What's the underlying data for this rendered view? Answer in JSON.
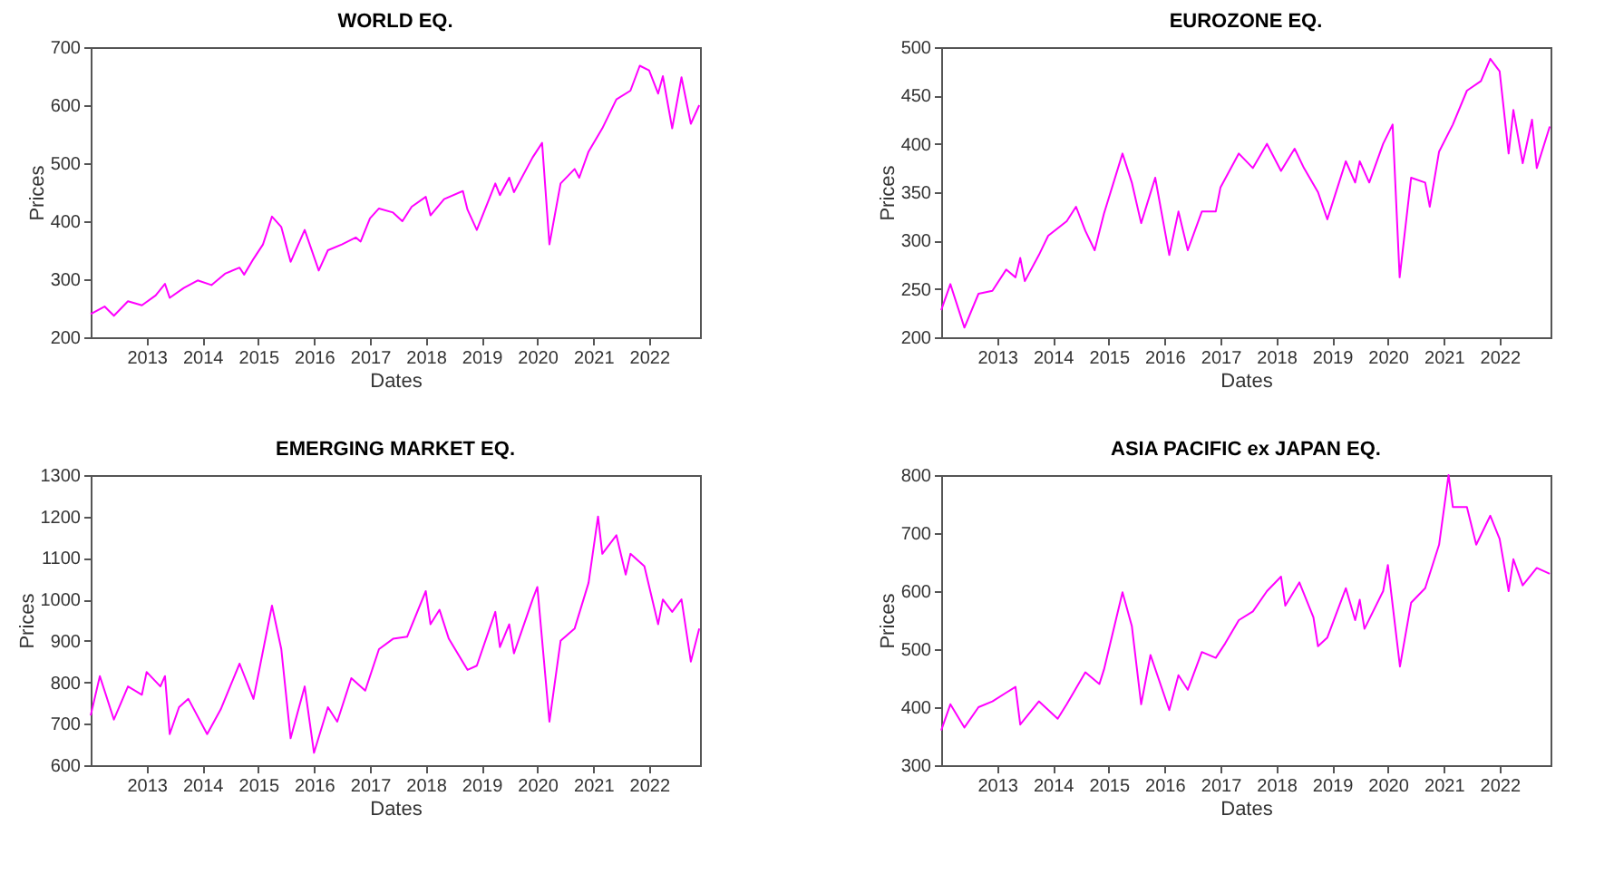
{
  "chart_data": [
    {
      "type": "line",
      "title": "WORLD EQ.",
      "xlabel": "Dates",
      "ylabel": "Prices",
      "grid": false,
      "xlim": [
        "2012-01-01",
        "2022-11-30"
      ],
      "xticks": [
        "2013",
        "2014",
        "2015",
        "2016",
        "2017",
        "2018",
        "2019",
        "2020",
        "2021",
        "2022"
      ],
      "ylim": [
        200,
        700
      ],
      "yticks": [
        200,
        300,
        400,
        500,
        600,
        700
      ],
      "x": [
        "2012-01",
        "2012-04",
        "2012-06",
        "2012-09",
        "2012-12",
        "2013-03",
        "2013-05",
        "2013-06",
        "2013-09",
        "2013-12",
        "2014-03",
        "2014-06",
        "2014-09",
        "2014-10",
        "2014-12",
        "2015-02",
        "2015-04",
        "2015-06",
        "2015-08",
        "2015-11",
        "2016-02",
        "2016-04",
        "2016-07",
        "2016-10",
        "2016-11",
        "2017-01",
        "2017-03",
        "2017-06",
        "2017-08",
        "2017-10",
        "2018-01",
        "2018-02",
        "2018-05",
        "2018-09",
        "2018-10",
        "2018-12",
        "2019-04",
        "2019-05",
        "2019-07",
        "2019-08",
        "2019-12",
        "2020-02",
        "2020-03-20",
        "2020-06",
        "2020-09",
        "2020-10",
        "2020-12",
        "2021-03",
        "2021-06",
        "2021-09",
        "2021-11",
        "2022-01",
        "2022-03",
        "2022-04",
        "2022-06",
        "2022-08",
        "2022-10",
        "2022-11-25"
      ],
      "series": [
        {
          "color": "#ff00ff",
          "values": [
            240,
            253,
            237,
            262,
            255,
            272,
            292,
            268,
            285,
            298,
            290,
            310,
            320,
            308,
            335,
            360,
            408,
            390,
            330,
            385,
            315,
            350,
            360,
            372,
            365,
            405,
            422,
            415,
            400,
            425,
            442,
            410,
            438,
            452,
            420,
            385,
            465,
            445,
            475,
            450,
            510,
            535,
            360,
            465,
            490,
            475,
            520,
            560,
            610,
            625,
            668,
            660,
            620,
            650,
            560,
            648,
            568,
            600
          ]
        }
      ]
    },
    {
      "type": "line",
      "title": "EUROZONE EQ.",
      "xlabel": "Dates",
      "ylabel": "Prices",
      "grid": false,
      "xlim": [
        "2012-01-01",
        "2022-11-30"
      ],
      "xticks": [
        "2013",
        "2014",
        "2015",
        "2016",
        "2017",
        "2018",
        "2019",
        "2020",
        "2021",
        "2022"
      ],
      "ylim": [
        200,
        500
      ],
      "yticks": [
        200,
        250,
        300,
        350,
        400,
        450,
        500
      ],
      "x": [
        "2012-01",
        "2012-03",
        "2012-06",
        "2012-09",
        "2012-12",
        "2013-03",
        "2013-05",
        "2013-06",
        "2013-07",
        "2013-10",
        "2013-12",
        "2014-04",
        "2014-06",
        "2014-08",
        "2014-10",
        "2014-12",
        "2015-04",
        "2015-06",
        "2015-08",
        "2015-11",
        "2016-02",
        "2016-04",
        "2016-06",
        "2016-09",
        "2016-12",
        "2017-01",
        "2017-05",
        "2017-08",
        "2017-11",
        "2018-02",
        "2018-05",
        "2018-07",
        "2018-10",
        "2018-12",
        "2019-04",
        "2019-06",
        "2019-07",
        "2019-09",
        "2019-12",
        "2020-02",
        "2020-03-18",
        "2020-06",
        "2020-09",
        "2020-10",
        "2020-12",
        "2021-03",
        "2021-06",
        "2021-09",
        "2021-11",
        "2022-01",
        "2022-03",
        "2022-04",
        "2022-06",
        "2022-08",
        "2022-09",
        "2022-11-25"
      ],
      "series": [
        {
          "color": "#ff00ff",
          "values": [
            228,
            255,
            210,
            245,
            248,
            270,
            262,
            282,
            258,
            285,
            305,
            320,
            335,
            310,
            290,
            328,
            390,
            360,
            318,
            365,
            285,
            330,
            290,
            330,
            330,
            355,
            390,
            375,
            400,
            372,
            395,
            375,
            350,
            322,
            382,
            360,
            382,
            360,
            400,
            420,
            262,
            365,
            360,
            335,
            392,
            420,
            455,
            465,
            488,
            475,
            390,
            435,
            380,
            425,
            375,
            418
          ]
        }
      ]
    },
    {
      "type": "line",
      "title": "EMERGING MARKET EQ.",
      "xlabel": "Dates",
      "ylabel": "Prices",
      "grid": false,
      "xlim": [
        "2012-01-01",
        "2022-11-30"
      ],
      "xticks": [
        "2013",
        "2014",
        "2015",
        "2016",
        "2017",
        "2018",
        "2019",
        "2020",
        "2021",
        "2022"
      ],
      "ylim": [
        600,
        1300
      ],
      "yticks": [
        600,
        700,
        800,
        900,
        1000,
        1100,
        1200,
        1300
      ],
      "x": [
        "2012-01",
        "2012-03",
        "2012-06",
        "2012-09",
        "2012-12",
        "2013-01",
        "2013-04",
        "2013-05",
        "2013-06",
        "2013-08",
        "2013-10",
        "2014-02",
        "2014-05",
        "2014-09",
        "2014-12",
        "2015-04",
        "2015-06",
        "2015-08",
        "2015-11",
        "2016-01",
        "2016-04",
        "2016-06",
        "2016-09",
        "2016-12",
        "2017-03",
        "2017-06",
        "2017-09",
        "2018-01",
        "2018-02",
        "2018-04",
        "2018-06",
        "2018-10",
        "2018-12",
        "2019-04",
        "2019-05",
        "2019-07",
        "2019-08",
        "2019-12",
        "2020-01",
        "2020-03-20",
        "2020-06",
        "2020-09",
        "2020-12",
        "2021-02",
        "2021-03",
        "2021-06",
        "2021-08",
        "2021-09",
        "2021-12",
        "2022-03",
        "2022-04",
        "2022-06",
        "2022-08",
        "2022-10",
        "2022-11-25"
      ],
      "series": [
        {
          "color": "#ff00ff",
          "values": [
            720,
            815,
            710,
            790,
            770,
            825,
            790,
            815,
            675,
            740,
            760,
            675,
            735,
            845,
            760,
            985,
            880,
            665,
            790,
            630,
            740,
            705,
            810,
            780,
            880,
            905,
            910,
            1020,
            940,
            975,
            905,
            830,
            840,
            970,
            885,
            940,
            870,
            1000,
            1030,
            705,
            900,
            930,
            1040,
            1200,
            1110,
            1155,
            1060,
            1110,
            1080,
            940,
            1000,
            970,
            1000,
            850,
            930
          ]
        }
      ]
    },
    {
      "type": "line",
      "title": "ASIA PACIFIC ex JAPAN EQ.",
      "xlabel": "Dates",
      "ylabel": "Prices",
      "grid": false,
      "xlim": [
        "2012-01-01",
        "2022-11-30"
      ],
      "xticks": [
        "2013",
        "2014",
        "2015",
        "2016",
        "2017",
        "2018",
        "2019",
        "2020",
        "2021",
        "2022"
      ],
      "ylim": [
        300,
        800
      ],
      "yticks": [
        300,
        400,
        500,
        600,
        700,
        800
      ],
      "x": [
        "2012-01",
        "2012-03",
        "2012-06",
        "2012-09",
        "2012-12",
        "2013-03",
        "2013-05",
        "2013-06",
        "2013-10",
        "2014-02",
        "2014-04",
        "2014-08",
        "2014-11",
        "2014-12",
        "2015-04",
        "2015-06",
        "2015-08",
        "2015-10",
        "2016-02",
        "2016-04",
        "2016-06",
        "2016-09",
        "2016-12",
        "2017-02",
        "2017-05",
        "2017-08",
        "2017-11",
        "2018-02",
        "2018-03",
        "2018-06",
        "2018-09",
        "2018-10",
        "2018-12",
        "2019-04",
        "2019-06",
        "2019-07",
        "2019-08",
        "2019-12",
        "2020-01",
        "2020-03-20",
        "2020-06",
        "2020-09",
        "2020-12",
        "2021-02",
        "2021-03",
        "2021-06",
        "2021-08",
        "2021-11",
        "2022-01",
        "2022-03",
        "2022-04",
        "2022-06",
        "2022-09",
        "2022-11-25"
      ],
      "series": [
        {
          "color": "#ff00ff",
          "values": [
            360,
            405,
            365,
            400,
            410,
            425,
            435,
            370,
            410,
            380,
            405,
            460,
            440,
            465,
            598,
            540,
            405,
            490,
            395,
            455,
            430,
            495,
            485,
            510,
            550,
            565,
            600,
            625,
            575,
            615,
            555,
            505,
            520,
            605,
            550,
            585,
            535,
            600,
            645,
            470,
            580,
            605,
            680,
            800,
            745,
            745,
            680,
            730,
            690,
            600,
            655,
            610,
            640,
            630
          ]
        }
      ]
    }
  ]
}
